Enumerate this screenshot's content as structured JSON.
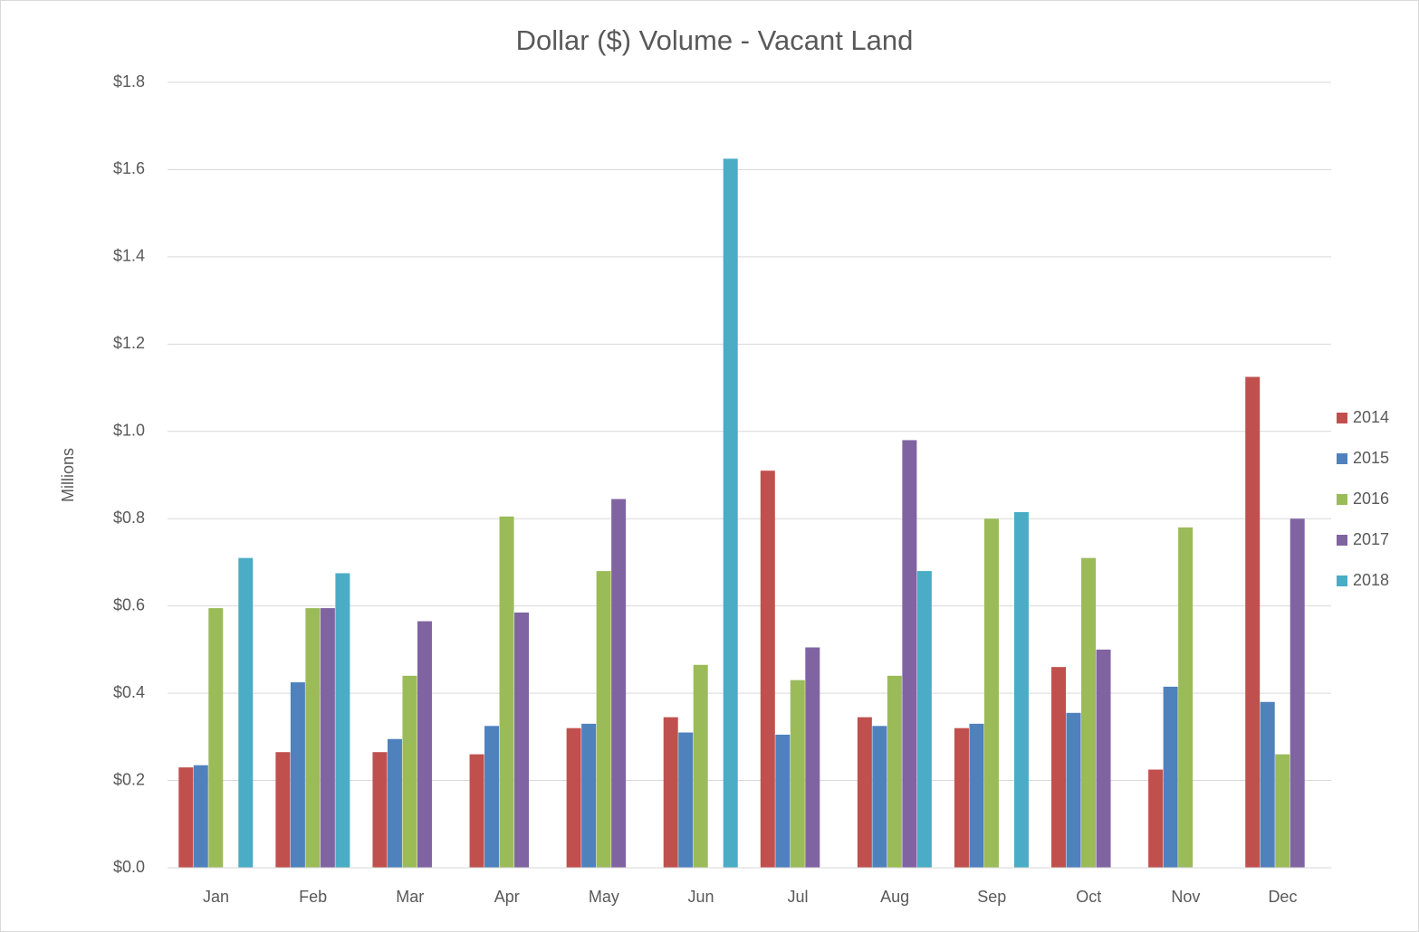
{
  "chart_data": {
    "type": "bar",
    "title": "Dollar ($) Volume - Vacant Land",
    "y_label": "Millions",
    "categories": [
      "Jan",
      "Feb",
      "Mar",
      "Apr",
      "May",
      "Jun",
      "Jul",
      "Aug",
      "Sep",
      "Oct",
      "Nov",
      "Dec"
    ],
    "series": [
      {
        "name": "2014",
        "color": "#c0504d",
        "values": [
          0.23,
          0.265,
          0.265,
          0.26,
          0.32,
          0.345,
          0.91,
          0.345,
          0.32,
          0.46,
          0.225,
          1.125
        ]
      },
      {
        "name": "2015",
        "color": "#4f81bd",
        "values": [
          0.235,
          0.425,
          0.295,
          0.325,
          0.33,
          0.31,
          0.305,
          0.325,
          0.33,
          0.355,
          0.415,
          0.38
        ]
      },
      {
        "name": "2016",
        "color": "#9bbb59",
        "values": [
          0.595,
          0.595,
          0.44,
          0.805,
          0.68,
          0.465,
          0.43,
          0.44,
          0.8,
          0.71,
          0.78,
          0.26
        ]
      },
      {
        "name": "2017",
        "color": "#8064a2",
        "values": [
          null,
          0.595,
          0.565,
          0.585,
          0.845,
          null,
          0.505,
          0.98,
          null,
          0.5,
          null,
          0.8
        ]
      },
      {
        "name": "2018",
        "color": "#4bacc6",
        "values": [
          0.71,
          0.675,
          null,
          null,
          null,
          1.625,
          null,
          0.68,
          0.815,
          null,
          null,
          null
        ]
      }
    ],
    "ylim": [
      0,
      1.8
    ],
    "yticks": [
      {
        "value": 0,
        "label": "$0.0"
      },
      {
        "value": 0.2,
        "label": "$0.2"
      },
      {
        "value": 0.4,
        "label": "$0.4"
      },
      {
        "value": 0.6,
        "label": "$0.6"
      },
      {
        "value": 0.8,
        "label": "$0.8"
      },
      {
        "value": 1.0,
        "label": "$1.0"
      },
      {
        "value": 1.2,
        "label": "$1.2"
      },
      {
        "value": 1.4,
        "label": "$1.4"
      },
      {
        "value": 1.6,
        "label": "$1.6"
      },
      {
        "value": 1.8,
        "label": "$1.8"
      }
    ],
    "grid": true,
    "legend": "right"
  }
}
